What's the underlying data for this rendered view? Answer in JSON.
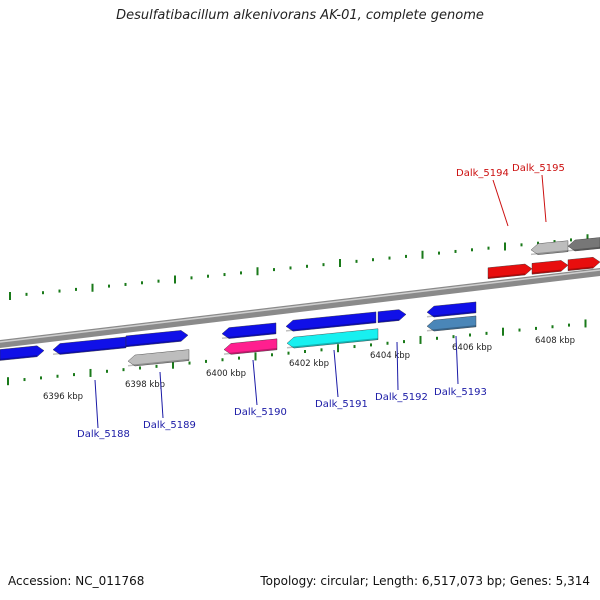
{
  "title": "Desulfatibacillum alkenivorans AK-01, complete genome",
  "footer": {
    "accession": "Accession: NC_011768",
    "summary": "Topology: circular; Length: 6,517,073 bp; Genes: 5,314"
  },
  "scale_labels": [
    "6396 kbp",
    "6398 kbp",
    "6400 kbp",
    "6402 kbp",
    "6404 kbp",
    "6406 kbp",
    "6408 kbp"
  ],
  "colors": {
    "blue": "#1010e8",
    "red": "#e80e0e",
    "gray": "#bdbdbd",
    "darkgray": "#777777",
    "pink": "#ff1f8f",
    "cyan": "#18f0f0",
    "steel": "#4a86b8",
    "tick": "#1a7a1a",
    "label_blue": "#1a1aa6",
    "label_red": "#cc1010"
  },
  "gene_labels": [
    {
      "name": "Dalk_5188",
      "color": "blue"
    },
    {
      "name": "Dalk_5189",
      "color": "blue"
    },
    {
      "name": "Dalk_5190",
      "color": "blue"
    },
    {
      "name": "Dalk_5191",
      "color": "blue"
    },
    {
      "name": "Dalk_5192",
      "color": "blue"
    },
    {
      "name": "Dalk_5193",
      "color": "blue"
    },
    {
      "name": "Dalk_5194",
      "color": "red"
    },
    {
      "name": "Dalk_5195",
      "color": "red"
    }
  ]
}
